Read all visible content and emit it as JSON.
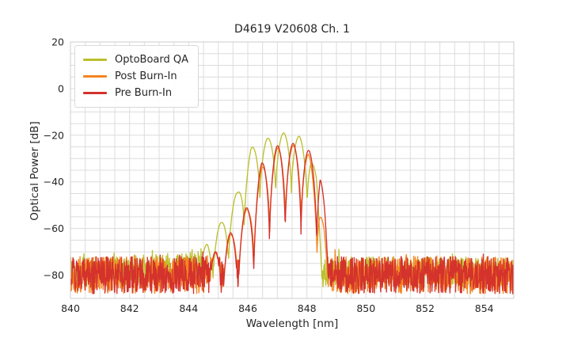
{
  "figure": {
    "background": "#ffffff",
    "grid_color": "#dcdcdc",
    "border_color": "#cccccc",
    "text_color": "#262626"
  },
  "chart_data": {
    "type": "line",
    "title": "D4619 V20608 Ch. 1",
    "xlabel": "Wavelength [nm]",
    "ylabel": "Optical Power [dB]",
    "xlim": [
      840,
      855
    ],
    "ylim": [
      -90,
      20
    ],
    "xticks": [
      840,
      842,
      844,
      846,
      848,
      850,
      852,
      854
    ],
    "xtick_labels": [
      "840",
      "842",
      "844",
      "846",
      "848",
      "850",
      "852",
      "854"
    ],
    "yticks": [
      20,
      0,
      -20,
      -40,
      -60,
      -80
    ],
    "ytick_labels": [
      "20",
      "0",
      "−20",
      "−40",
      "−60",
      "−80"
    ],
    "grid": {
      "on": true,
      "x_step_nm": 0.5,
      "y_step_db": 5
    },
    "legend": {
      "position": "upper left",
      "entries": [
        "OptoBoard QA",
        "Post Burn-In",
        "Pre Burn-In"
      ]
    },
    "sampling": {
      "step_nm": 0.012
    },
    "series": [
      {
        "name": "OptoBoard QA",
        "color": "#bcbf2d",
        "seed": 7,
        "peak_power_db": -19,
        "peak_wavelength_nm": 847.2,
        "mode_spacing_nm": 0.533,
        "mode_peak_ref_nm": 847.21,
        "dip_depth_db": 26,
        "envelope": [
          [
            843.95,
            -96
          ],
          [
            844.35,
            -76
          ],
          [
            844.63,
            -65
          ],
          [
            845.12,
            -57
          ],
          [
            845.66,
            -44
          ],
          [
            846.11,
            -25.5
          ],
          [
            846.64,
            -21.5
          ],
          [
            847.21,
            -19
          ],
          [
            847.75,
            -20.5
          ],
          [
            848.12,
            -26.5
          ],
          [
            848.32,
            -38
          ],
          [
            848.5,
            -66
          ],
          [
            848.62,
            -75
          ],
          [
            848.8,
            -96
          ]
        ],
        "noise": {
          "min_db": -85,
          "max_db": -72,
          "tilt_db": 2.5
        }
      },
      {
        "name": "Post Burn-In",
        "color": "#f5851f",
        "seed": 13,
        "peak_power_db": -24.5,
        "peak_wavelength_nm": 847.55,
        "mode_spacing_nm": 0.533,
        "mode_peak_ref_nm": 847.01,
        "dip_depth_db": 33,
        "envelope": [
          [
            844.35,
            -96
          ],
          [
            844.7,
            -76
          ],
          [
            844.92,
            -70
          ],
          [
            845.47,
            -62
          ],
          [
            846.05,
            -50
          ],
          [
            846.47,
            -34
          ],
          [
            847.01,
            -25.5
          ],
          [
            847.55,
            -24.5
          ],
          [
            848.06,
            -28
          ],
          [
            848.42,
            -44
          ],
          [
            848.58,
            -60
          ],
          [
            848.72,
            -80
          ],
          [
            848.82,
            -96
          ]
        ],
        "noise": {
          "min_db": -88,
          "max_db": -72,
          "tilt_db": 0
        }
      },
      {
        "name": "Pre Burn-In",
        "color": "#d4322c",
        "seed": 29,
        "peak_power_db": -23.5,
        "peak_wavelength_nm": 847.54,
        "mode_spacing_nm": 0.533,
        "mode_peak_ref_nm": 847.0,
        "dip_depth_db": 39,
        "envelope": [
          [
            844.4,
            -96
          ],
          [
            844.72,
            -75
          ],
          [
            844.92,
            -69
          ],
          [
            845.47,
            -61
          ],
          [
            846.05,
            -49
          ],
          [
            846.47,
            -32
          ],
          [
            847.0,
            -24.5
          ],
          [
            847.54,
            -23.5
          ],
          [
            848.06,
            -26.5
          ],
          [
            848.45,
            -30.5
          ],
          [
            848.6,
            -52
          ],
          [
            848.73,
            -76
          ],
          [
            848.82,
            -96
          ]
        ],
        "noise": {
          "min_db": -88,
          "max_db": -72,
          "tilt_db": 0
        }
      }
    ]
  }
}
